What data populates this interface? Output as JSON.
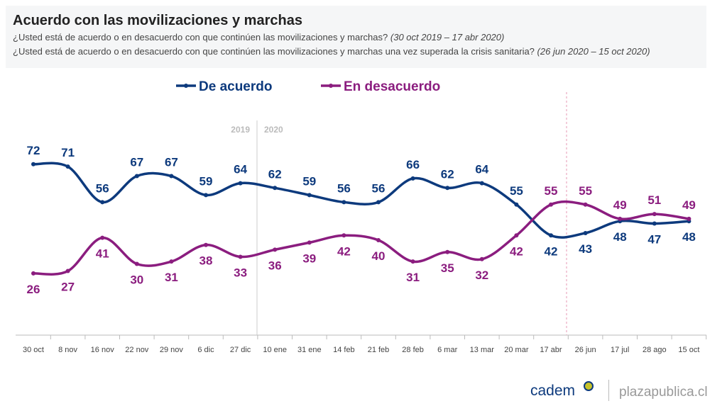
{
  "header": {
    "title": "Acuerdo con las movilizaciones y marchas",
    "q1": "¿Usted está de acuerdo o en desacuerdo con que continúen las movilizaciones y marchas?",
    "q1_range": "(30 oct 2019 – 17 abr 2020)",
    "q2": "¿Usted está de acuerdo o en desacuerdo con que continúen las movilizaciones y marchas una vez superada la crisis sanitaria?",
    "q2_range": "(26 jun 2020 – 15 oct 2020)"
  },
  "chart_data": {
    "type": "line",
    "title": "Acuerdo con las movilizaciones y marchas",
    "categories": [
      "30 oct",
      "8 nov",
      "16 nov",
      "22 nov",
      "29 nov",
      "6 dic",
      "27 dic",
      "10 ene",
      "31 ene",
      "14 feb",
      "21 feb",
      "28 feb",
      "6 mar",
      "13 mar",
      "20 mar",
      "17 abr",
      "26 jun",
      "17 jul",
      "28 ago",
      "15 oct"
    ],
    "series": [
      {
        "name": "De acuerdo",
        "color": "#0d3a7d",
        "values": [
          72,
          71,
          56,
          67,
          67,
          59,
          64,
          62,
          59,
          56,
          56,
          66,
          62,
          64,
          55,
          42,
          43,
          48,
          47,
          48
        ]
      },
      {
        "name": "En desacuerdo",
        "color": "#8b1d7f",
        "values": [
          26,
          27,
          41,
          30,
          31,
          38,
          33,
          36,
          39,
          42,
          40,
          31,
          35,
          32,
          42,
          55,
          55,
          49,
          51,
          49
        ]
      }
    ],
    "year_labels": [
      "2019",
      "2020"
    ],
    "legend": "top-center",
    "ylim": [
      0,
      80
    ],
    "grid": false
  },
  "footer": {
    "brand": "cadem",
    "site": "plazapublica.cl"
  }
}
